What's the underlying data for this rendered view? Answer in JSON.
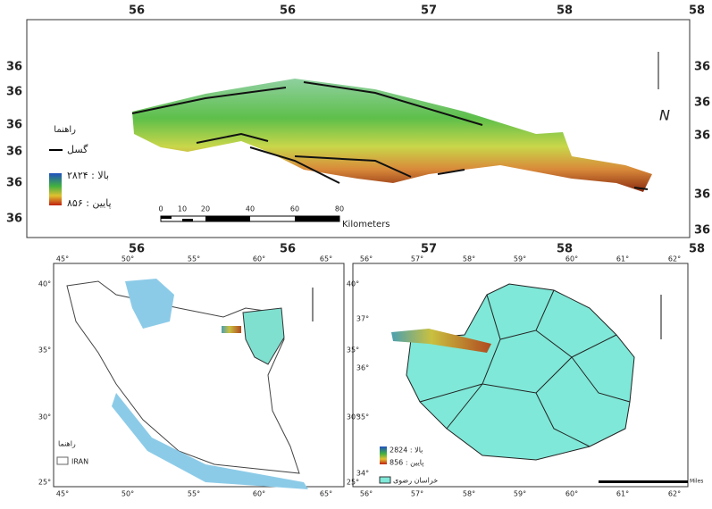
{
  "top_map": {
    "top_ticks": [
      "56",
      "56",
      "57",
      "58",
      "58"
    ],
    "bottom_ticks": [
      "56",
      "56",
      "57",
      "58",
      "58"
    ],
    "left_ticks": [
      "36",
      "36",
      "36",
      "36",
      "36",
      "36"
    ],
    "right_ticks": [
      "36",
      "36",
      "36",
      "36",
      "36"
    ],
    "legend": {
      "title": "راهنما",
      "fault": "گسل",
      "high": "بالا : ۲۸۲۴",
      "low": "پایین : ۸۵۶"
    },
    "scale": {
      "ticks": [
        "0",
        "10",
        "20",
        "40",
        "60",
        "80"
      ],
      "unit": "Kilometers"
    }
  },
  "iran_map": {
    "top_ticks": [
      "45°",
      "50°",
      "55°",
      "60°",
      "65°"
    ],
    "bottom_ticks": [
      "45°",
      "50°",
      "55°",
      "60°",
      "65°"
    ],
    "left_ticks": [
      "40°",
      "35°",
      "30°",
      "25°"
    ],
    "right_ticks": [
      "40°",
      "35°",
      "30°",
      "25°"
    ],
    "legend": {
      "title": "راهنما",
      "item": "IRAN"
    }
  },
  "khorasan_map": {
    "top_ticks": [
      "56°",
      "57°",
      "58°",
      "59°",
      "60°",
      "61°",
      "62°"
    ],
    "bottom_ticks": [
      "56°",
      "57°",
      "58°",
      "59°",
      "60°",
      "61°",
      "62°"
    ],
    "left_ticks": [
      "37°",
      "36°",
      "35°",
      "34°"
    ],
    "legend": {
      "high": "2824 : بالا",
      "low": "856 : پایین",
      "item": "خراسان رضوی"
    },
    "scale": {
      "unit": "Miles"
    }
  }
}
